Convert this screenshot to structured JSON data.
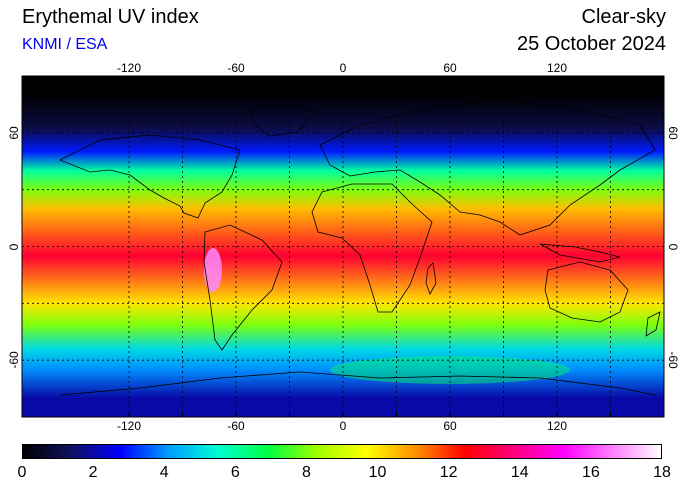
{
  "header": {
    "title": "Erythemal UV index",
    "credit": "KNMI / ESA",
    "condition": "Clear-sky",
    "date": "25 October 2024"
  },
  "map": {
    "projection": "plate carree",
    "lon_range": [
      -180,
      180
    ],
    "lat_range": [
      -90,
      90
    ],
    "grid_lon": [
      -120,
      -90,
      -60,
      -30,
      0,
      30,
      60,
      90,
      120,
      150
    ],
    "grid_lat": [
      -60,
      -30,
      0,
      30,
      60
    ],
    "lon_tick_labels": [
      "-120",
      "-60",
      "0",
      "60",
      "120"
    ],
    "lat_tick_labels": [
      "-60",
      "0",
      "60"
    ],
    "uv_bands": [
      {
        "lat_from": 90,
        "lat_to": 70,
        "uv": 0
      },
      {
        "lat_from": 70,
        "lat_to": 55,
        "uv": 1
      },
      {
        "lat_from": 55,
        "lat_to": 45,
        "uv": 3
      },
      {
        "lat_from": 45,
        "lat_to": 35,
        "uv": 6
      },
      {
        "lat_from": 35,
        "lat_to": 25,
        "uv": 8
      },
      {
        "lat_from": 25,
        "lat_to": 15,
        "uv": 10.5
      },
      {
        "lat_from": 15,
        "lat_to": -25,
        "uv": 13
      },
      {
        "lat_from": -25,
        "lat_to": -35,
        "uv": 10
      },
      {
        "lat_from": -35,
        "lat_to": -48,
        "uv": 8
      },
      {
        "lat_from": -48,
        "lat_to": -60,
        "uv": 5
      },
      {
        "lat_from": -60,
        "lat_to": -70,
        "uv": 4
      },
      {
        "lat_from": -70,
        "lat_to": -90,
        "uv": 2
      }
    ]
  },
  "colorbar": {
    "min": 0,
    "max": 18,
    "tick_labels": [
      "0",
      "2",
      "4",
      "6",
      "8",
      "10",
      "12",
      "14",
      "16",
      "18"
    ],
    "colors": [
      "#000000",
      "#101060",
      "#0000ff",
      "#00a0ff",
      "#00ffd0",
      "#00ff40",
      "#a0ff00",
      "#ffff00",
      "#ff9000",
      "#ff0000",
      "#ff0080",
      "#ff00ff",
      "#ff80ff",
      "#ffffff"
    ]
  }
}
